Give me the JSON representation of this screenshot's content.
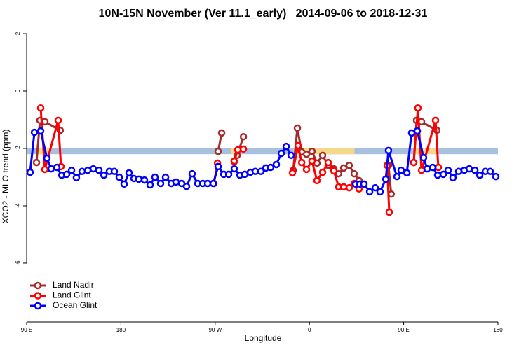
{
  "chart_data": {
    "type": "line",
    "title": "10N-15N November (Ver 11.1_early)   2014-09-06 to 2018-12-31",
    "x_label": "Longitude",
    "y_label": "XCO2 - MLO trend (ppm)",
    "xlim": [
      90,
      540
    ],
    "xticks": [
      {
        "value": 90,
        "label": "90 E"
      },
      180,
      {
        "value": 270,
        "label": "90 W"
      },
      {
        "value": 360,
        "label": "0"
      },
      {
        "value": 450,
        "label": "90 E"
      },
      {
        "value": 540,
        "label": "180"
      }
    ],
    "ylim": [
      -8.05,
      2.44
    ],
    "yticks": [
      2,
      0,
      -2,
      -4,
      -6
    ],
    "legend": "bottom-left",
    "mask_band": {
      "y": [
        -2.2,
        -2.0
      ],
      "color": "#a8c0e0",
      "land_color": "#f5d88a",
      "land_x": [
        [
          101,
          112
        ],
        [
          285,
          295
        ],
        [
          345,
          403
        ],
        [
          460,
          483
        ]
      ]
    },
    "series": [
      {
        "name": "Land Nadir",
        "color": "#a52a2a",
        "x": [
          99.4,
          102.7,
          107.4,
          122.1,
          null,
          272.8,
          276.2,
          null,
          288.2,
          290.9,
          297.0,
          null,
          344.5,
          348.5,
          352.6,
          357.2,
          362.5,
          367.2,
          372.6,
          377.9,
          383.3,
          387.9,
          392.7,
          398.0,
          402.7,
          407.4,
          null,
          435.5,
          438.1,
          null,
          459.6,
          462.3,
          467.0,
          481.7
        ],
        "values": [
          -2.49,
          -1.02,
          -1.07,
          -1.37,
          null,
          -2.1,
          -1.46,
          null,
          -2.46,
          -2.24,
          -1.59,
          null,
          -2.76,
          -1.29,
          -2.12,
          -2.2,
          -2.1,
          -2.51,
          -2.24,
          -2.59,
          -2.71,
          -2.88,
          -2.68,
          -2.59,
          -2.88,
          -3.12,
          null,
          -2.59,
          -3.59,
          null,
          -2.49,
          -1.02,
          -1.07,
          -1.37
        ]
      },
      {
        "name": "Land Glint",
        "color": "#ff0000",
        "x": [
          103.4,
          107.4,
          120.1,
          122.8,
          null,
          268.8,
          272.2,
          null,
          288.2,
          291.6,
          297.0,
          null,
          343.8,
          349.2,
          352.6,
          357.2,
          362.5,
          367.2,
          372.6,
          377.9,
          383.3,
          387.9,
          392.7,
          398.0,
          402.7,
          407.4,
          null,
          434.2,
          436.2,
          null,
          459.6,
          463.6,
          467.0,
          480.4,
          483.1
        ],
        "values": [
          -0.59,
          -2.73,
          -1.02,
          -2.63,
          null,
          -3.22,
          -2.51,
          null,
          -2.44,
          -2.05,
          -2.02,
          null,
          -2.85,
          -1.9,
          -2.49,
          -2.73,
          -2.44,
          -3.12,
          -2.83,
          -2.49,
          -2.78,
          -3.34,
          -3.34,
          -3.37,
          -3.22,
          -3.41,
          null,
          -2.59,
          -4.22,
          null,
          -2.49,
          -0.59,
          -2.76,
          -1.02,
          -2.66
        ]
      },
      {
        "name": "Ocean Glint",
        "color": "#0000ff",
        "x": [
          93.3,
          97.4,
          103.4,
          109.4,
          113.4,
          118.8,
          123.5,
          128.2,
          132.9,
          137.5,
          142.9,
          148.3,
          153.6,
          159.0,
          163.7,
          169.0,
          173.7,
          178.4,
          183.1,
          187.8,
          192.5,
          197.1,
          202.5,
          207.9,
          212.5,
          217.9,
          222.6,
          228.0,
          232.6,
          238.0,
          242.7,
          248.0,
          253.4,
          258.1,
          262.8,
          268.1,
          272.8,
          278.2,
          282.9,
          288.2,
          293.6,
          298.3,
          303.6,
          308.3,
          313.7,
          318.4,
          323.0,
          328.4,
          333.1,
          337.8,
          342.5,
          null,
          404.1,
          408.1,
          412.1,
          417.5,
          422.8,
          427.5,
          432.9,
          435.5,
          443.6,
          447.6,
          453.0,
          457.6,
          463.0,
          469.0,
          472.4,
          477.7,
          482.4,
          487.8,
          492.5,
          497.1,
          502.5,
          507.9,
          512.6,
          518.0,
          522.6,
          528.0,
          532.6,
          538.0
        ],
        "values": [
          -2.83,
          -1.44,
          -1.39,
          -2.34,
          -2.71,
          -2.66,
          -2.93,
          -2.9,
          -2.76,
          -3.02,
          -2.8,
          -2.76,
          -2.71,
          -2.76,
          -2.93,
          -2.8,
          -2.8,
          -3.0,
          -3.24,
          -2.85,
          -3.05,
          -3.07,
          -3.1,
          -3.27,
          -3.0,
          -3.22,
          -3.0,
          -3.22,
          -3.17,
          -3.22,
          -3.32,
          -2.88,
          -3.22,
          -3.22,
          -3.22,
          -3.22,
          -2.63,
          -2.9,
          -2.9,
          -2.71,
          -2.93,
          -2.9,
          -2.83,
          -2.8,
          -2.8,
          -2.68,
          -2.66,
          -2.56,
          -2.17,
          -1.93,
          -2.24,
          null,
          -3.24,
          -3.24,
          -3.24,
          -3.51,
          -3.37,
          -3.51,
          -3.07,
          -2.07,
          -2.98,
          -2.76,
          -2.85,
          -1.46,
          -1.39,
          -2.32,
          -2.71,
          -2.66,
          -2.93,
          -2.9,
          -2.76,
          -3.02,
          -2.8,
          -2.76,
          -2.71,
          -2.76,
          -2.93,
          -2.8,
          -2.8,
          -2.98
        ]
      }
    ]
  }
}
